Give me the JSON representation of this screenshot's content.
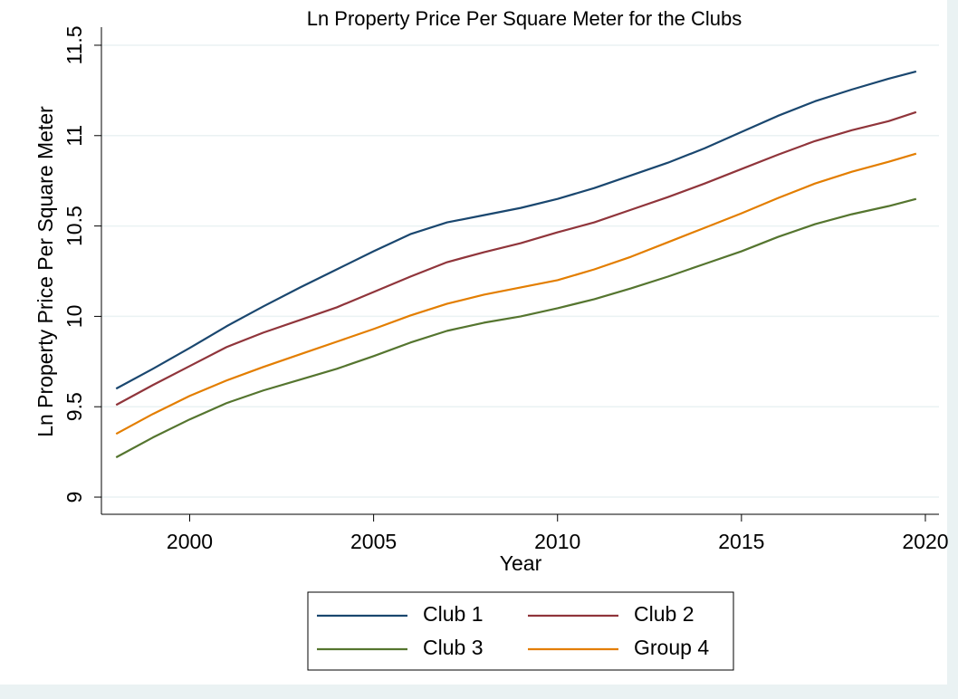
{
  "chart_data": {
    "type": "line",
    "title": "Ln Property Price Per Square Meter for the Clubs",
    "xlabel": "Year",
    "ylabel": "Ln Property Price Per Square Meter",
    "x": [
      1998,
      1999,
      2000,
      2001,
      2002,
      2003,
      2004,
      2005,
      2006,
      2007,
      2008,
      2009,
      2010,
      2011,
      2012,
      2013,
      2014,
      2015,
      2016,
      2017,
      2018,
      2019,
      2019.75
    ],
    "series": [
      {
        "name": "Club 1",
        "color": "#1a476f",
        "values": [
          9.6,
          9.71,
          9.825,
          9.945,
          10.055,
          10.16,
          10.26,
          10.36,
          10.455,
          10.52,
          10.56,
          10.6,
          10.65,
          10.71,
          10.78,
          10.85,
          10.93,
          11.02,
          11.11,
          11.19,
          11.255,
          11.315,
          11.355
        ]
      },
      {
        "name": "Club 2",
        "color": "#90353b",
        "values": [
          9.51,
          9.62,
          9.725,
          9.83,
          9.91,
          9.98,
          10.05,
          10.135,
          10.22,
          10.3,
          10.355,
          10.405,
          10.465,
          10.52,
          10.59,
          10.66,
          10.735,
          10.815,
          10.895,
          10.97,
          11.03,
          11.08,
          11.13
        ]
      },
      {
        "name": "Club 3",
        "color": "#55752f",
        "values": [
          9.22,
          9.33,
          9.43,
          9.52,
          9.59,
          9.65,
          9.71,
          9.78,
          9.855,
          9.92,
          9.965,
          10.0,
          10.045,
          10.095,
          10.155,
          10.22,
          10.29,
          10.36,
          10.44,
          10.51,
          10.565,
          10.61,
          10.65
        ]
      },
      {
        "name": "Group 4",
        "color": "#e37e00",
        "values": [
          9.35,
          9.46,
          9.56,
          9.645,
          9.72,
          9.79,
          9.86,
          9.93,
          10.005,
          10.07,
          10.12,
          10.16,
          10.2,
          10.26,
          10.33,
          10.41,
          10.49,
          10.57,
          10.655,
          10.735,
          10.8,
          10.855,
          10.9
        ]
      }
    ],
    "xlim": [
      1997.6,
      2020.37
    ],
    "ylim": [
      8.905,
      11.6
    ],
    "xticks": [
      2000,
      2005,
      2010,
      2015,
      2020
    ],
    "yticks": [
      9,
      9.5,
      10,
      10.5,
      11,
      11.5
    ],
    "grid": true,
    "legend_position": "bottom"
  }
}
